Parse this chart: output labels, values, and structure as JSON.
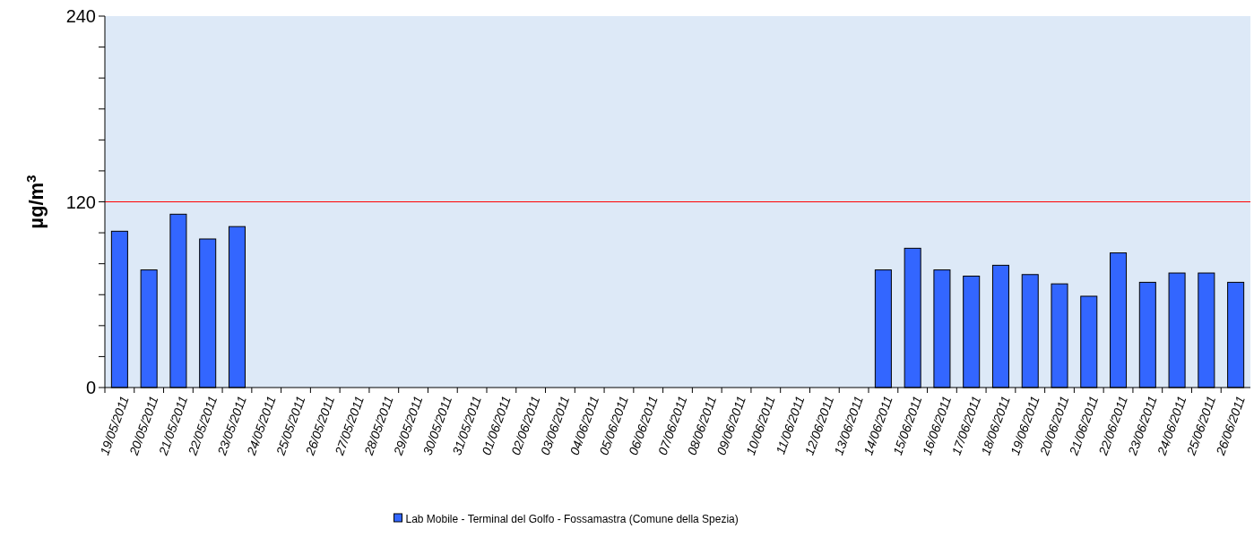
{
  "chart_data": {
    "type": "bar",
    "ylabel": "µg/m$^{3}$",
    "categories": [
      "19/05/2011",
      "20/05/2011",
      "21/05/2011",
      "22/05/2011",
      "23/05/2011",
      "24/05/2011",
      "25/05/2011",
      "26/05/2011",
      "27/05/2011",
      "28/05/2011",
      "29/05/2011",
      "30/05/2011",
      "31/05/2011",
      "01/06/2011",
      "02/06/2011",
      "03/06/2011",
      "04/06/2011",
      "05/06/2011",
      "06/06/2011",
      "07/06/2011",
      "08/06/2011",
      "09/06/2011",
      "10/06/2011",
      "11/06/2011",
      "12/06/2011",
      "13/06/2011",
      "14/06/2011",
      "15/06/2011",
      "16/06/2011",
      "17/06/2011",
      "18/06/2011",
      "19/06/2011",
      "20/06/2011",
      "21/06/2011",
      "22/06/2011",
      "23/06/2011",
      "24/06/2011",
      "25/06/2011",
      "26/06/2011"
    ],
    "series": [
      {
        "name": "Lab Mobile -  Terminal del Golfo - Fossamastra (Comune della Spezia)",
        "color": "#3366ff",
        "values": [
          101,
          76,
          112,
          96,
          104,
          null,
          null,
          null,
          null,
          null,
          null,
          null,
          null,
          null,
          null,
          null,
          null,
          null,
          null,
          null,
          null,
          null,
          null,
          null,
          null,
          null,
          76,
          90,
          76,
          72,
          79,
          73,
          67,
          59,
          87,
          68,
          74,
          74,
          68
        ]
      }
    ],
    "ylim": [
      0,
      240
    ],
    "yticks": [
      0,
      {
        "value": 20,
        "label": null
      },
      {
        "value": 40,
        "label": null
      },
      {
        "value": 60,
        "label": null
      },
      {
        "value": 80,
        "label": null
      },
      {
        "value": 100,
        "label": null
      },
      120,
      {
        "value": 140,
        "label": null
      },
      {
        "value": 160,
        "label": null
      },
      {
        "value": 180,
        "label": null
      },
      {
        "value": 200,
        "label": null
      },
      {
        "value": 220,
        "label": null
      },
      240
    ],
    "ref_lines": [
      {
        "axis": "y",
        "value": 120,
        "color": "#ff0000"
      }
    ],
    "legend": "bottom",
    "grid": false
  }
}
